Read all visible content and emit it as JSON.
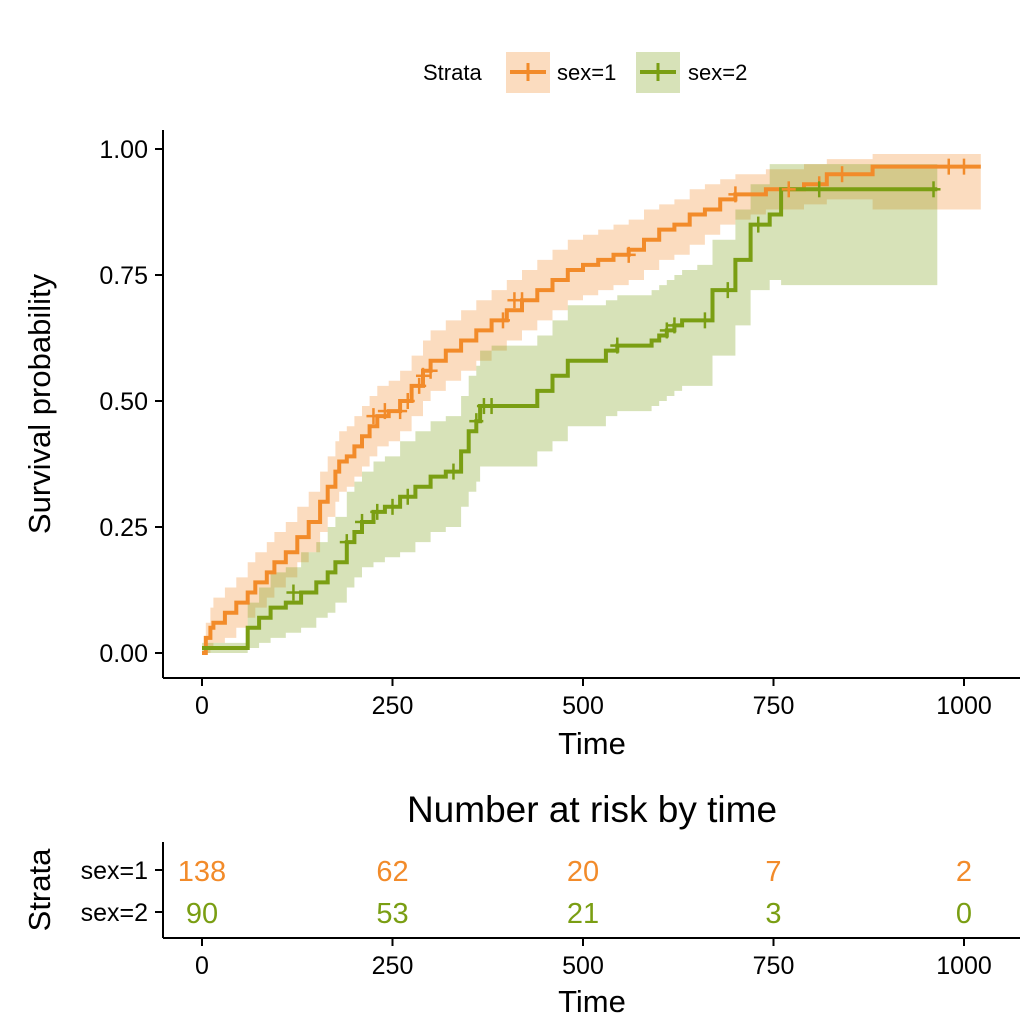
{
  "colors": {
    "sex1": "#F28B2A",
    "sex2": "#7A9E13"
  },
  "legend": {
    "title": "Strata",
    "items": [
      {
        "label": "sex=1",
        "color": "#F28B2A"
      },
      {
        "label": "sex=2",
        "color": "#7A9E13"
      }
    ]
  },
  "chart_data": {
    "type": "line",
    "step": true,
    "xlabel": "Time",
    "ylabel": "Survival probability",
    "xlim": [
      0,
      1020
    ],
    "ylim": [
      0,
      1
    ],
    "xticks": [
      0,
      250,
      500,
      750,
      1000
    ],
    "xtick_labels": [
      "0",
      "250",
      "500",
      "750",
      "1000"
    ],
    "yticks": [
      0,
      0.25,
      0.5,
      0.75,
      1.0
    ],
    "ytick_labels": [
      "0.00",
      "0.25",
      "0.50",
      "0.75",
      "1.00"
    ],
    "legend_position": "top",
    "confidence_bands": true,
    "series": [
      {
        "name": "sex=1",
        "color": "#F28B2A",
        "x": [
          0,
          5,
          11,
          15,
          30,
          45,
          60,
          70,
          85,
          95,
          110,
          125,
          140,
          155,
          165,
          175,
          180,
          190,
          200,
          210,
          220,
          230,
          245,
          260,
          275,
          290,
          300,
          320,
          340,
          360,
          380,
          400,
          420,
          440,
          460,
          480,
          500,
          520,
          540,
          560,
          580,
          600,
          620,
          640,
          660,
          680,
          700,
          720,
          740,
          760,
          790,
          820,
          880,
          960,
          1022
        ],
        "y": [
          0,
          0.03,
          0.05,
          0.06,
          0.08,
          0.1,
          0.12,
          0.14,
          0.16,
          0.18,
          0.2,
          0.23,
          0.26,
          0.3,
          0.33,
          0.36,
          0.38,
          0.39,
          0.41,
          0.43,
          0.45,
          0.47,
          0.48,
          0.5,
          0.53,
          0.56,
          0.58,
          0.6,
          0.62,
          0.64,
          0.66,
          0.68,
          0.7,
          0.72,
          0.74,
          0.76,
          0.77,
          0.78,
          0.79,
          0.8,
          0.82,
          0.84,
          0.85,
          0.87,
          0.88,
          0.9,
          0.91,
          0.91,
          0.92,
          0.92,
          0.93,
          0.95,
          0.965,
          0.965,
          0.965
        ],
        "lower": [
          0,
          0.0,
          0.01,
          0.02,
          0.03,
          0.05,
          0.07,
          0.09,
          0.11,
          0.13,
          0.15,
          0.18,
          0.2,
          0.24,
          0.27,
          0.3,
          0.32,
          0.33,
          0.35,
          0.37,
          0.39,
          0.41,
          0.42,
          0.44,
          0.47,
          0.5,
          0.52,
          0.54,
          0.56,
          0.58,
          0.6,
          0.62,
          0.64,
          0.66,
          0.68,
          0.7,
          0.71,
          0.72,
          0.73,
          0.74,
          0.76,
          0.78,
          0.79,
          0.81,
          0.83,
          0.85,
          0.86,
          0.87,
          0.88,
          0.88,
          0.89,
          0.9,
          0.88,
          0.88,
          0.88
        ],
        "upper": [
          0,
          0.06,
          0.09,
          0.11,
          0.13,
          0.15,
          0.18,
          0.2,
          0.22,
          0.24,
          0.26,
          0.29,
          0.32,
          0.36,
          0.39,
          0.42,
          0.44,
          0.45,
          0.47,
          0.49,
          0.51,
          0.53,
          0.54,
          0.56,
          0.59,
          0.62,
          0.64,
          0.66,
          0.68,
          0.7,
          0.72,
          0.74,
          0.76,
          0.78,
          0.8,
          0.82,
          0.83,
          0.84,
          0.85,
          0.86,
          0.88,
          0.89,
          0.9,
          0.92,
          0.93,
          0.94,
          0.95,
          0.95,
          0.96,
          0.96,
          0.97,
          0.98,
          0.99,
          0.99,
          0.99
        ],
        "censor_x": [
          225,
          240,
          260,
          270,
          285,
          290,
          300,
          395,
          410,
          420,
          560,
          700,
          770,
          810,
          840,
          980,
          1000
        ],
        "censor_y": [
          0.47,
          0.48,
          0.48,
          0.5,
          0.53,
          0.55,
          0.56,
          0.66,
          0.7,
          0.7,
          0.79,
          0.91,
          0.92,
          0.93,
          0.95,
          0.965,
          0.965
        ]
      },
      {
        "name": "sex=2",
        "color": "#7A9E13",
        "x": [
          0,
          5,
          60,
          75,
          90,
          110,
          130,
          150,
          165,
          175,
          190,
          200,
          210,
          225,
          240,
          260,
          280,
          300,
          320,
          340,
          350,
          360,
          365,
          380,
          440,
          460,
          480,
          520,
          530,
          545,
          590,
          600,
          610,
          620,
          630,
          650,
          670,
          700,
          720,
          745,
          760,
          780,
          880,
          965
        ],
        "y": [
          0.01,
          0.01,
          0.05,
          0.07,
          0.09,
          0.1,
          0.12,
          0.14,
          0.16,
          0.18,
          0.22,
          0.24,
          0.26,
          0.28,
          0.29,
          0.31,
          0.33,
          0.35,
          0.36,
          0.4,
          0.44,
          0.46,
          0.49,
          0.49,
          0.52,
          0.55,
          0.58,
          0.58,
          0.6,
          0.61,
          0.62,
          0.63,
          0.64,
          0.65,
          0.66,
          0.66,
          0.72,
          0.78,
          0.85,
          0.87,
          0.92,
          0.92,
          0.92,
          0.92
        ],
        "lower": [
          0.0,
          0.0,
          0.01,
          0.02,
          0.03,
          0.04,
          0.05,
          0.07,
          0.08,
          0.1,
          0.13,
          0.15,
          0.17,
          0.18,
          0.19,
          0.2,
          0.22,
          0.24,
          0.25,
          0.29,
          0.32,
          0.34,
          0.37,
          0.37,
          0.4,
          0.42,
          0.45,
          0.45,
          0.47,
          0.48,
          0.49,
          0.5,
          0.51,
          0.52,
          0.53,
          0.53,
          0.59,
          0.65,
          0.72,
          0.74,
          0.73,
          0.73,
          0.73,
          0.73
        ],
        "upper": [
          0.02,
          0.02,
          0.1,
          0.13,
          0.16,
          0.17,
          0.2,
          0.22,
          0.25,
          0.27,
          0.32,
          0.34,
          0.36,
          0.38,
          0.39,
          0.42,
          0.44,
          0.46,
          0.47,
          0.51,
          0.55,
          0.57,
          0.6,
          0.61,
          0.63,
          0.66,
          0.69,
          0.69,
          0.7,
          0.71,
          0.72,
          0.73,
          0.74,
          0.75,
          0.76,
          0.77,
          0.82,
          0.88,
          0.93,
          0.97,
          0.97,
          0.97,
          0.97,
          0.97
        ],
        "censor_x": [
          120,
          190,
          210,
          230,
          250,
          270,
          330,
          360,
          370,
          380,
          545,
          610,
          620,
          660,
          690,
          730,
          810,
          960
        ],
        "censor_y": [
          0.12,
          0.22,
          0.26,
          0.28,
          0.29,
          0.31,
          0.36,
          0.46,
          0.49,
          0.49,
          0.61,
          0.64,
          0.65,
          0.66,
          0.72,
          0.85,
          0.92,
          0.92
        ]
      }
    ]
  },
  "risk_table": {
    "title": "Number at risk by time",
    "ylabel": "Strata",
    "xlabel": "Time",
    "rows": [
      {
        "label": "sex=1",
        "color": "#F28B2A",
        "values": [
          "138",
          "62",
          "20",
          "7",
          "2"
        ]
      },
      {
        "label": "sex=2",
        "color": "#7A9E13",
        "values": [
          "90",
          "53",
          "21",
          "3",
          "0"
        ]
      }
    ],
    "times": [
      0,
      250,
      500,
      750,
      1000
    ],
    "time_labels": [
      "0",
      "250",
      "500",
      "750",
      "1000"
    ]
  }
}
